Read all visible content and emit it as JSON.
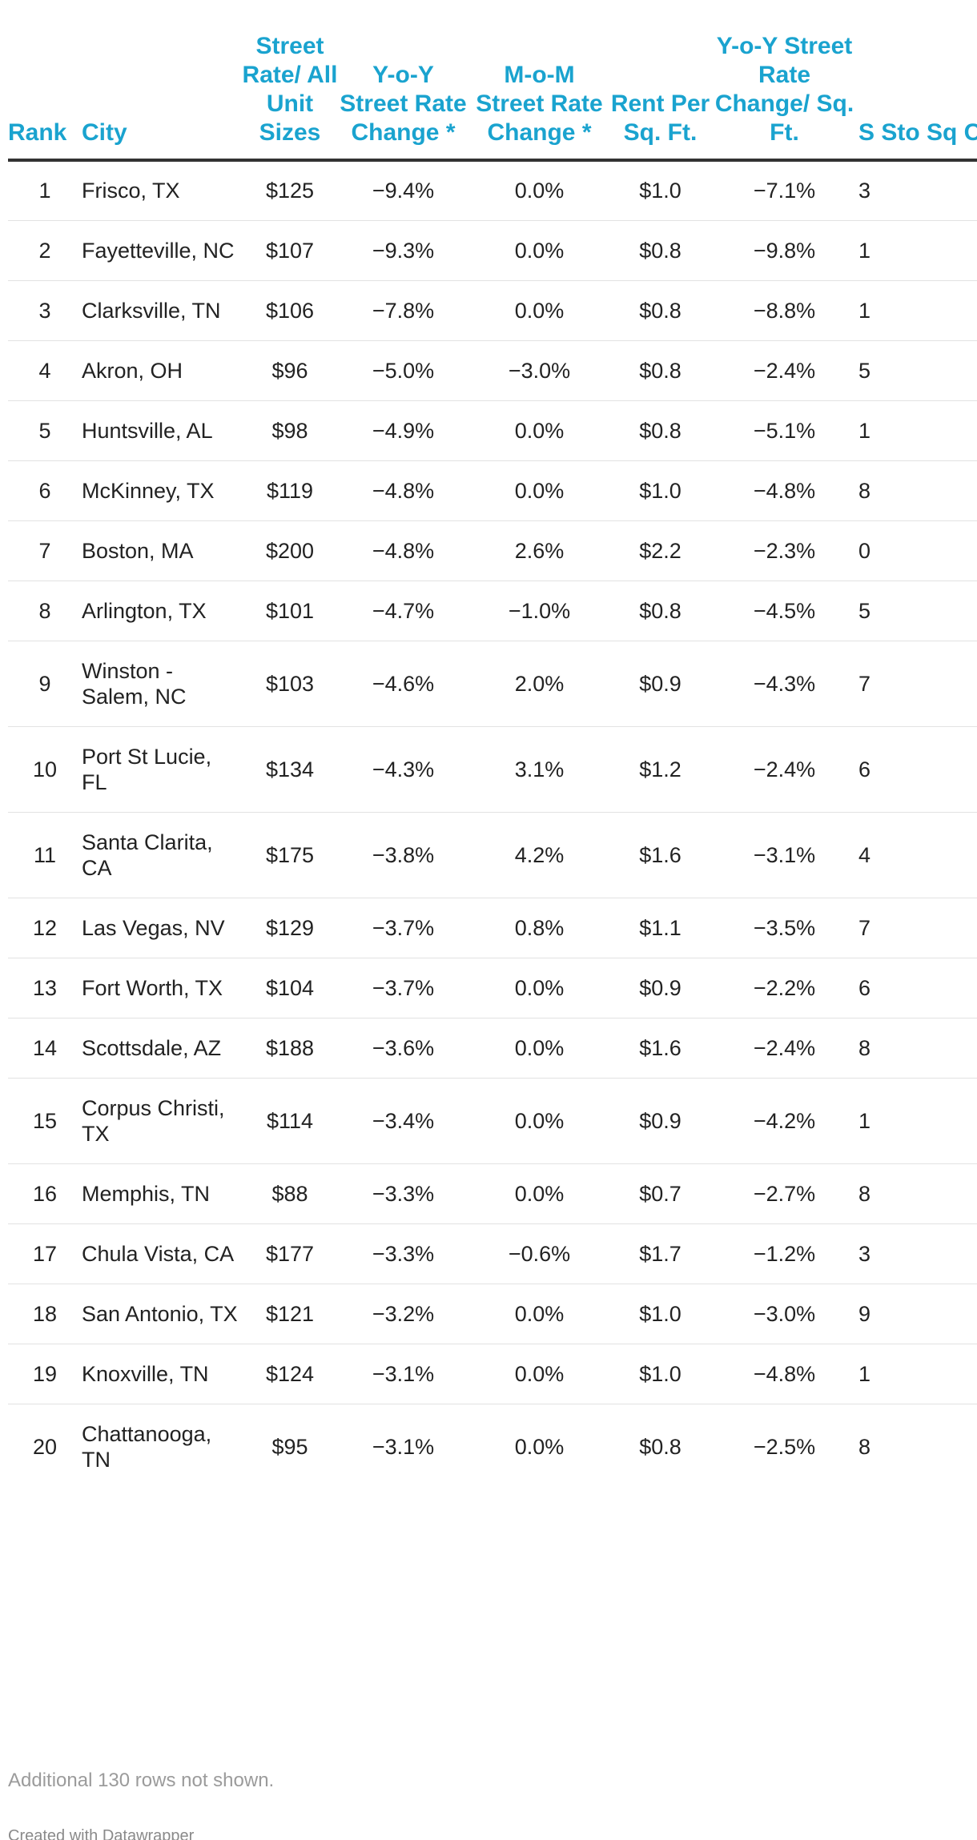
{
  "chart_data": {
    "type": "table",
    "columns": [
      "Rank",
      "City",
      "Street Rate/ All Unit Sizes",
      "Y-o-Y Street Rate Change *",
      "M-o-M Street Rate Change *",
      "Rent Per Sq. Ft.",
      "Y-o-Y Street Rate Change/ Sq. Ft.",
      "S Sto Sq Ca"
    ],
    "rows": [
      {
        "rank": "1",
        "city": "Frisco, TX",
        "rate": "$125",
        "yoy": "−9.4%",
        "mom": "0.0%",
        "rent": "$1.0",
        "yoysq": "−7.1%",
        "extra": "3"
      },
      {
        "rank": "2",
        "city": "Fayetteville, NC",
        "rate": "$107",
        "yoy": "−9.3%",
        "mom": "0.0%",
        "rent": "$0.8",
        "yoysq": "−9.8%",
        "extra": "1"
      },
      {
        "rank": "3",
        "city": "Clarksville, TN",
        "rate": "$106",
        "yoy": "−7.8%",
        "mom": "0.0%",
        "rent": "$0.8",
        "yoysq": "−8.8%",
        "extra": "1"
      },
      {
        "rank": "4",
        "city": "Akron, OH",
        "rate": "$96",
        "yoy": "−5.0%",
        "mom": "−3.0%",
        "rent": "$0.8",
        "yoysq": "−2.4%",
        "extra": "5"
      },
      {
        "rank": "5",
        "city": "Huntsville, AL",
        "rate": "$98",
        "yoy": "−4.9%",
        "mom": "0.0%",
        "rent": "$0.8",
        "yoysq": "−5.1%",
        "extra": "1"
      },
      {
        "rank": "6",
        "city": "McKinney, TX",
        "rate": "$119",
        "yoy": "−4.8%",
        "mom": "0.0%",
        "rent": "$1.0",
        "yoysq": "−4.8%",
        "extra": "8"
      },
      {
        "rank": "7",
        "city": "Boston, MA",
        "rate": "$200",
        "yoy": "−4.8%",
        "mom": "2.6%",
        "rent": "$2.2",
        "yoysq": "−2.3%",
        "extra": "0"
      },
      {
        "rank": "8",
        "city": "Arlington, TX",
        "rate": "$101",
        "yoy": "−4.7%",
        "mom": "−1.0%",
        "rent": "$0.8",
        "yoysq": "−4.5%",
        "extra": "5"
      },
      {
        "rank": "9",
        "city": "Winston - Salem, NC",
        "rate": "$103",
        "yoy": "−4.6%",
        "mom": "2.0%",
        "rent": "$0.9",
        "yoysq": "−4.3%",
        "extra": "7"
      },
      {
        "rank": "10",
        "city": "Port St Lucie, FL",
        "rate": "$134",
        "yoy": "−4.3%",
        "mom": "3.1%",
        "rent": "$1.2",
        "yoysq": "−2.4%",
        "extra": "6"
      },
      {
        "rank": "11",
        "city": "Santa Clarita, CA",
        "rate": "$175",
        "yoy": "−3.8%",
        "mom": "4.2%",
        "rent": "$1.6",
        "yoysq": "−3.1%",
        "extra": "4"
      },
      {
        "rank": "12",
        "city": "Las Vegas, NV",
        "rate": "$129",
        "yoy": "−3.7%",
        "mom": "0.8%",
        "rent": "$1.1",
        "yoysq": "−3.5%",
        "extra": "7"
      },
      {
        "rank": "13",
        "city": "Fort Worth, TX",
        "rate": "$104",
        "yoy": "−3.7%",
        "mom": "0.0%",
        "rent": "$0.9",
        "yoysq": "−2.2%",
        "extra": "6"
      },
      {
        "rank": "14",
        "city": "Scottsdale, AZ",
        "rate": "$188",
        "yoy": "−3.6%",
        "mom": "0.0%",
        "rent": "$1.6",
        "yoysq": "−2.4%",
        "extra": "8"
      },
      {
        "rank": "15",
        "city": "Corpus Christi, TX",
        "rate": "$114",
        "yoy": "−3.4%",
        "mom": "0.0%",
        "rent": "$0.9",
        "yoysq": "−4.2%",
        "extra": "1"
      },
      {
        "rank": "16",
        "city": "Memphis, TN",
        "rate": "$88",
        "yoy": "−3.3%",
        "mom": "0.0%",
        "rent": "$0.7",
        "yoysq": "−2.7%",
        "extra": "8"
      },
      {
        "rank": "17",
        "city": "Chula Vista, CA",
        "rate": "$177",
        "yoy": "−3.3%",
        "mom": "−0.6%",
        "rent": "$1.7",
        "yoysq": "−1.2%",
        "extra": "3"
      },
      {
        "rank": "18",
        "city": "San Antonio, TX",
        "rate": "$121",
        "yoy": "−3.2%",
        "mom": "0.0%",
        "rent": "$1.0",
        "yoysq": "−3.0%",
        "extra": "9"
      },
      {
        "rank": "19",
        "city": "Knoxville, TN",
        "rate": "$124",
        "yoy": "−3.1%",
        "mom": "0.0%",
        "rent": "$1.0",
        "yoysq": "−4.8%",
        "extra": "1"
      },
      {
        "rank": "20",
        "city": "Chattanooga, TN",
        "rate": "$95",
        "yoy": "−3.1%",
        "mom": "0.0%",
        "rent": "$0.8",
        "yoysq": "−2.5%",
        "extra": "8"
      }
    ]
  },
  "footer": {
    "note": "Additional 130 rows not shown.",
    "credit": "Created with Datawrapper"
  },
  "colors": {
    "header": "#1aa3cf",
    "rule": "#333333"
  }
}
